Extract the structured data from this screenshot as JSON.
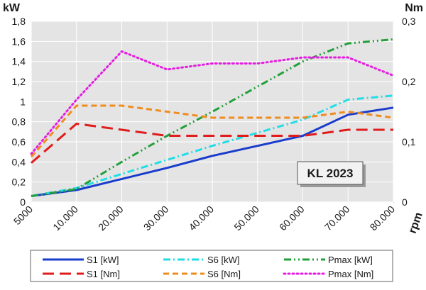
{
  "chart_data": {
    "type": "line",
    "badge": "KL 2023",
    "x_unit": "rpm",
    "y_left_unit": "kW",
    "y_right_unit": "Nm",
    "x_tick_labels": [
      "5000",
      "10.000",
      "20.000",
      "30.000",
      "40.000",
      "50.000",
      "60.000",
      "70.000",
      "80.000"
    ],
    "x_tick_values": [
      5000,
      10000,
      20000,
      30000,
      40000,
      50000,
      60000,
      70000,
      80000
    ],
    "xlim": [
      5000,
      80000
    ],
    "y_left_ticks": [
      "0",
      "0,2",
      "0,4",
      "0,6",
      "0,8",
      "1",
      "1,2",
      "1,4",
      "1,6",
      "1,8"
    ],
    "y_left_lim": [
      0,
      1.8
    ],
    "y_right_ticks": [
      "0",
      "0,1",
      "0,2",
      "0,3"
    ],
    "y_right_lim": [
      0,
      0.3
    ],
    "grid": true,
    "legend_position": "bottom",
    "background_color": "#e4e4e4",
    "series": [
      {
        "name": "S1 [kW]",
        "axis": "left",
        "color": "#1a3ccc",
        "dash": "solid",
        "points": [
          [
            5000,
            0.06
          ],
          [
            10000,
            0.12
          ],
          [
            20000,
            0.23
          ],
          [
            30000,
            0.34
          ],
          [
            40000,
            0.46
          ],
          [
            50000,
            0.56
          ],
          [
            60000,
            0.66
          ],
          [
            70000,
            0.87
          ],
          [
            80000,
            0.94
          ]
        ]
      },
      {
        "name": "S6 [kW]",
        "axis": "left",
        "color": "#22dde6",
        "dash": "dashdot",
        "points": [
          [
            5000,
            0.06
          ],
          [
            10000,
            0.14
          ],
          [
            20000,
            0.28
          ],
          [
            30000,
            0.42
          ],
          [
            40000,
            0.56
          ],
          [
            50000,
            0.69
          ],
          [
            60000,
            0.82
          ],
          [
            70000,
            1.02
          ],
          [
            80000,
            1.06
          ]
        ]
      },
      {
        "name": "Pmax [kW]",
        "axis": "left",
        "color": "#22a03a",
        "dash": "dashdotdot",
        "points": [
          [
            5000,
            0.06
          ],
          [
            10000,
            0.13
          ],
          [
            20000,
            0.4
          ],
          [
            30000,
            0.66
          ],
          [
            40000,
            0.9
          ],
          [
            50000,
            1.15
          ],
          [
            60000,
            1.4
          ],
          [
            70000,
            1.58
          ],
          [
            80000,
            1.62
          ]
        ]
      },
      {
        "name": "S1 [Nm]",
        "axis": "right",
        "color": "#e01c1c",
        "dash": "longdash",
        "points": [
          [
            5000,
            0.065
          ],
          [
            10000,
            0.13
          ],
          [
            20000,
            0.12
          ],
          [
            30000,
            0.11
          ],
          [
            40000,
            0.11
          ],
          [
            50000,
            0.11
          ],
          [
            60000,
            0.11
          ],
          [
            70000,
            0.12
          ],
          [
            80000,
            0.12
          ]
        ]
      },
      {
        "name": "S6 [Nm]",
        "axis": "right",
        "color": "#f08c1e",
        "dash": "dash",
        "points": [
          [
            5000,
            0.075
          ],
          [
            10000,
            0.16
          ],
          [
            20000,
            0.16
          ],
          [
            30000,
            0.15
          ],
          [
            40000,
            0.14
          ],
          [
            50000,
            0.14
          ],
          [
            60000,
            0.14
          ],
          [
            70000,
            0.15
          ],
          [
            80000,
            0.14
          ]
        ]
      },
      {
        "name": "Pmax [Nm]",
        "axis": "right",
        "color": "#e51ee0",
        "dash": "dot",
        "points": [
          [
            5000,
            0.08
          ],
          [
            10000,
            0.17
          ],
          [
            20000,
            0.25
          ],
          [
            30000,
            0.22
          ],
          [
            40000,
            0.23
          ],
          [
            50000,
            0.23
          ],
          [
            60000,
            0.24
          ],
          [
            70000,
            0.24
          ],
          [
            80000,
            0.21
          ]
        ]
      }
    ]
  }
}
